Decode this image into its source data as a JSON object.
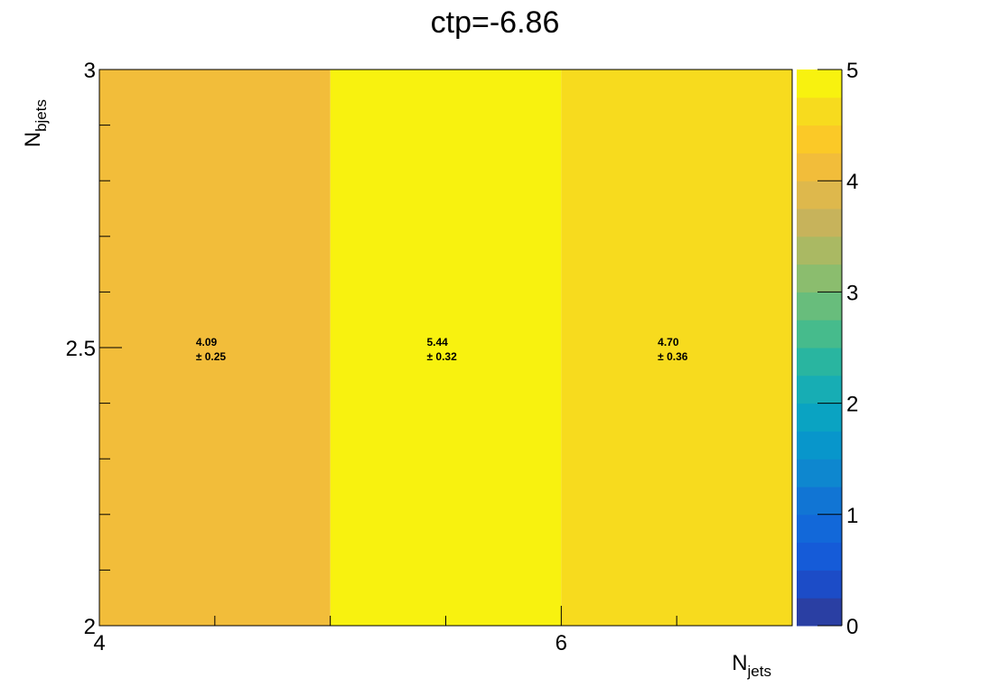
{
  "chart_data": {
    "type": "heatmap",
    "title": "ctp=-6.86",
    "xlabel": {
      "main": "N",
      "sub": "jets"
    },
    "ylabel": {
      "main": "N",
      "sub": "bjets"
    },
    "x_bin_edges": [
      4,
      5,
      6,
      7
    ],
    "y_bin_edges": [
      2,
      3
    ],
    "xlim": [
      4,
      7
    ],
    "ylim": [
      2,
      3
    ],
    "x_tick_labels": [
      {
        "value": 4,
        "label": "4"
      },
      {
        "value": 6,
        "label": "6"
      }
    ],
    "y_tick_labels": [
      {
        "value": 2,
        "label": "2"
      },
      {
        "value": 2.5,
        "label": "2.5"
      },
      {
        "value": 3,
        "label": "3"
      }
    ],
    "cells": [
      {
        "x_low": 4,
        "x_high": 5,
        "y_low": 2,
        "y_high": 3,
        "value": 4.09,
        "error": 0.25,
        "value_label": "4.09",
        "error_label": "± 0.25"
      },
      {
        "x_low": 5,
        "x_high": 6,
        "y_low": 2,
        "y_high": 3,
        "value": 5.44,
        "error": 0.32,
        "value_label": "5.44",
        "error_label": "± 0.32"
      },
      {
        "x_low": 6,
        "x_high": 7,
        "y_low": 2,
        "y_high": 3,
        "value": 4.7,
        "error": 0.36,
        "value_label": "4.70",
        "error_label": "± 0.36"
      }
    ],
    "colorbar": {
      "min": 0,
      "max": 5,
      "tick_labels": [
        {
          "value": 0,
          "label": "0"
        },
        {
          "value": 1,
          "label": "1"
        },
        {
          "value": 2,
          "label": "2"
        },
        {
          "value": 3,
          "label": "3"
        },
        {
          "value": 4,
          "label": "4"
        },
        {
          "value": 5,
          "label": "5"
        }
      ],
      "colors": [
        "#2a3fa3",
        "#1c4cc7",
        "#155bd8",
        "#1268d9",
        "#1175d4",
        "#0e87cf",
        "#0896cb",
        "#0aa3c2",
        "#17adb4",
        "#29b5a0",
        "#46bb8c",
        "#68bd7c",
        "#8bbd6e",
        "#aab963",
        "#c7b35b",
        "#deb84c",
        "#f2bd3a",
        "#fbc927",
        "#f7db1e",
        "#f8f20f"
      ]
    },
    "grid": false
  }
}
